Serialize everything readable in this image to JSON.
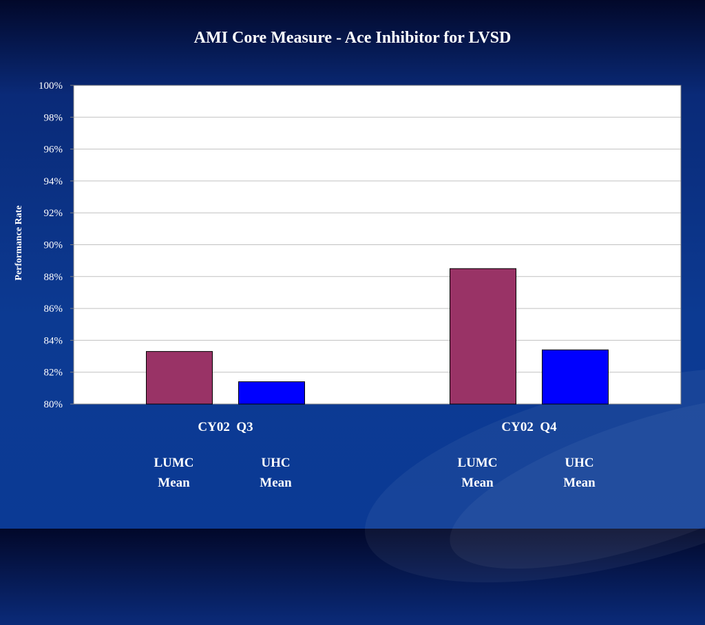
{
  "chart_data": {
    "type": "bar",
    "title": "AMI Core Measure - Ace Inhibitor for LVSD",
    "xlabel": "",
    "ylabel": "Performance Rate",
    "ylim": [
      80,
      100
    ],
    "yticks": [
      "80%",
      "82%",
      "84%",
      "86%",
      "88%",
      "90%",
      "92%",
      "94%",
      "96%",
      "98%",
      "100%"
    ],
    "categories": [
      "CY02  Q3",
      "CY02  Q4"
    ],
    "series": [
      {
        "name": "LUMC Mean",
        "line1": "LUMC",
        "line2": "Mean",
        "color": "#993366",
        "values": [
          83.3,
          88.5
        ]
      },
      {
        "name": "UHC Mean",
        "line1": "UHC",
        "line2": "Mean",
        "color": "#0000ff",
        "values": [
          81.4,
          83.4
        ]
      }
    ],
    "grid": true,
    "legend": "none",
    "plot_background": "#ffffff",
    "gridline_color": "#c0c0c0"
  }
}
